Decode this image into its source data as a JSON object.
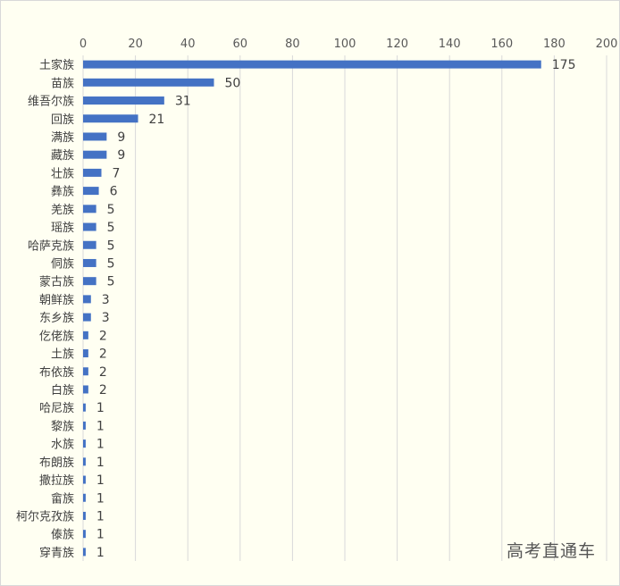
{
  "watermark": "高考直通车",
  "colors": {
    "bar": "#4472c4",
    "grid": "#d9d9d9",
    "background": "#fffff2"
  },
  "chart_data": {
    "type": "bar",
    "orientation": "horizontal",
    "categories": [
      "土家族",
      "苗族",
      "维吾尔族",
      "回族",
      "满族",
      "藏族",
      "壮族",
      "彝族",
      "羌族",
      "瑶族",
      "哈萨克族",
      "侗族",
      "蒙古族",
      "朝鲜族",
      "东乡族",
      "仡佬族",
      "土族",
      "布依族",
      "白族",
      "哈尼族",
      "黎族",
      "水族",
      "布朗族",
      "撒拉族",
      "畲族",
      "柯尔克孜族",
      "傣族",
      "穿青族"
    ],
    "values": [
      175,
      50,
      31,
      21,
      9,
      9,
      7,
      6,
      5,
      5,
      5,
      5,
      5,
      3,
      3,
      2,
      2,
      2,
      2,
      1,
      1,
      1,
      1,
      1,
      1,
      1,
      1,
      1
    ],
    "xlim": [
      0,
      200
    ],
    "xticks": [
      0,
      20,
      40,
      60,
      80,
      100,
      120,
      140,
      160,
      180,
      200
    ],
    "x_axis_position": "top",
    "grid": true,
    "data_labels": true,
    "title": "",
    "xlabel": "",
    "ylabel": ""
  }
}
